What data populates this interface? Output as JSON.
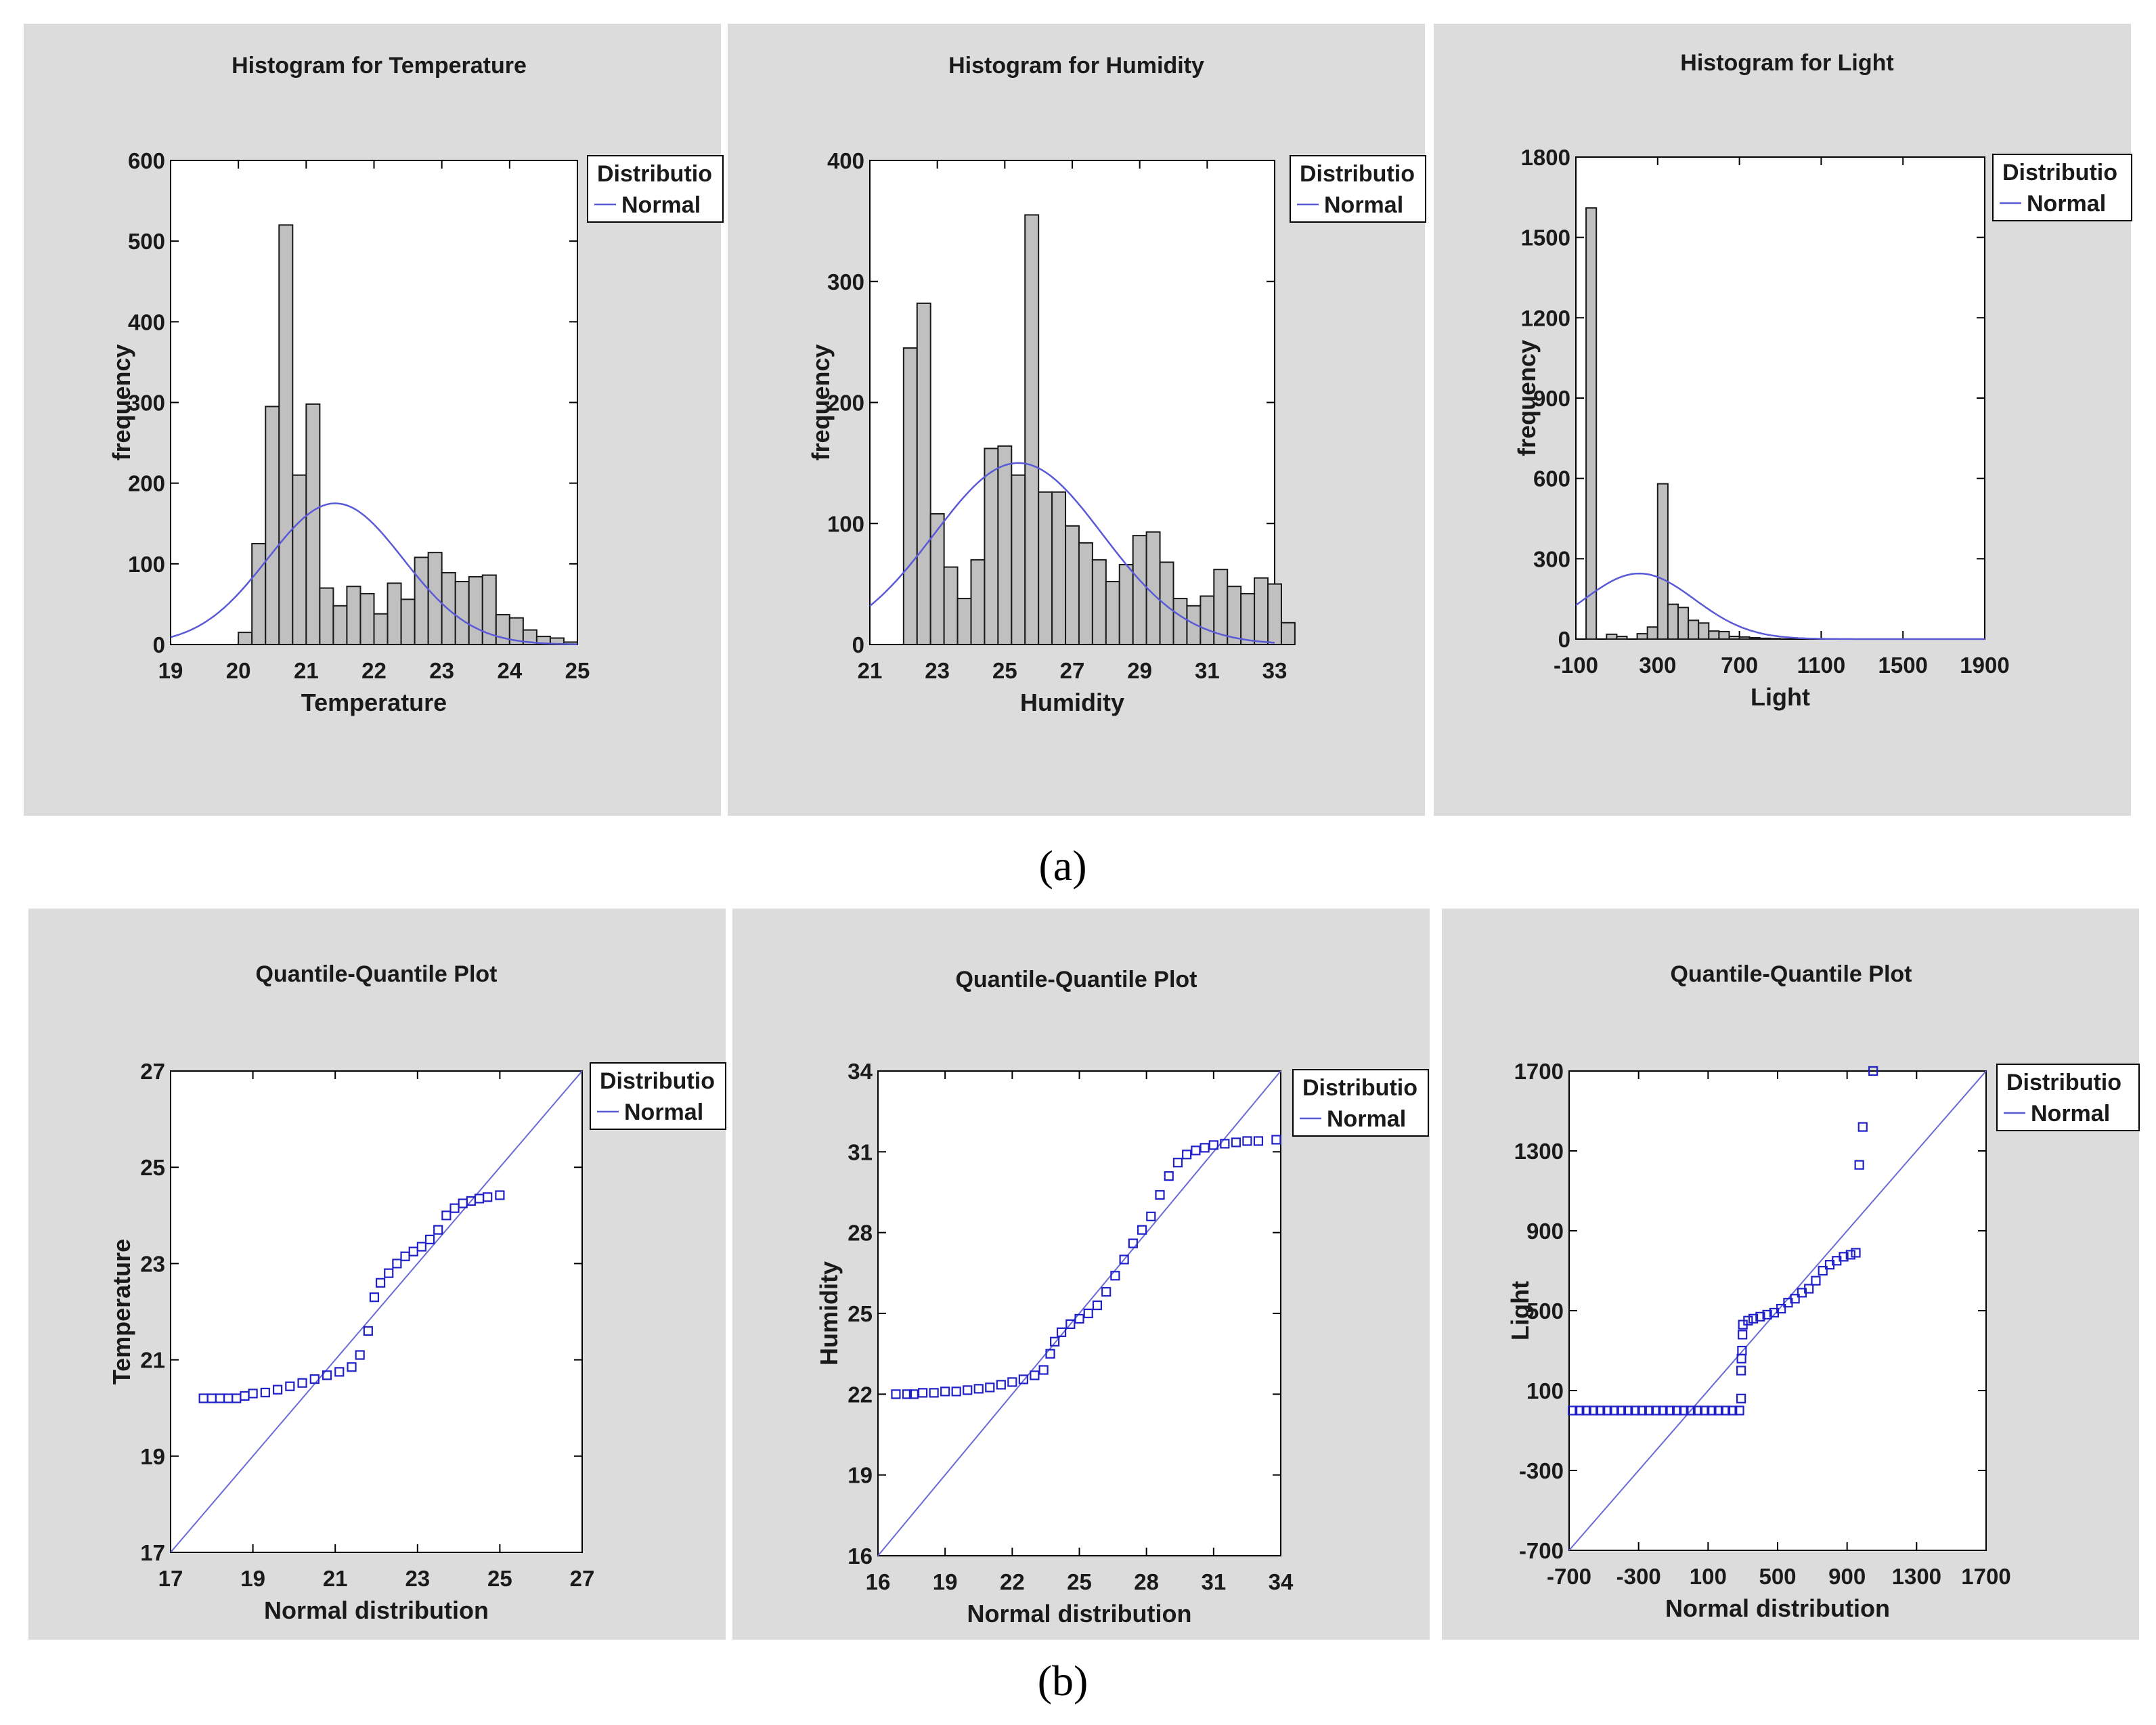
{
  "figure": {
    "label_a": "(a)",
    "label_b": "(b)"
  },
  "legend": {
    "title": "Distributio",
    "entry": "Normal",
    "curve_color": "#5a5ad6",
    "point_color": "#2020c8"
  },
  "chart_data": [
    {
      "id": "hist-temperature",
      "type": "bar",
      "title": "Histogram for Temperature",
      "xlabel": "Temperature",
      "ylabel": "frequency",
      "xlim": [
        19,
        25
      ],
      "ylim": [
        0,
        600
      ],
      "xticks": [
        19,
        20,
        21,
        22,
        23,
        24,
        25
      ],
      "yticks": [
        0,
        100,
        200,
        300,
        400,
        500,
        600
      ],
      "bin_start": 20,
      "bin_width": 0.2,
      "values": [
        15,
        125,
        295,
        520,
        210,
        298,
        70,
        48,
        72,
        63,
        38,
        76,
        56,
        108,
        114,
        89,
        78,
        84,
        86,
        37,
        33,
        18,
        10,
        8,
        3
      ],
      "normal_fit": {
        "mean": 21.43,
        "sd": 1.0,
        "peak": 175
      }
    },
    {
      "id": "hist-humidity",
      "type": "bar",
      "title": "Histogram for Humidity",
      "xlabel": "Humidity",
      "ylabel": "frequency",
      "xlim": [
        21,
        33
      ],
      "ylim": [
        0,
        400
      ],
      "xticks": [
        21,
        23,
        25,
        27,
        29,
        31,
        33
      ],
      "yticks": [
        0,
        100,
        200,
        300,
        400
      ],
      "bin_start": 22,
      "bin_width": 0.4,
      "values": [
        245,
        282,
        108,
        64,
        38,
        70,
        162,
        164,
        140,
        355,
        126,
        126,
        98,
        84,
        70,
        52,
        66,
        90,
        93,
        68,
        38,
        32,
        40,
        62,
        48,
        42,
        55,
        50,
        18
      ],
      "normal_fit": {
        "mean": 25.4,
        "sd": 2.5,
        "peak": 150
      }
    },
    {
      "id": "hist-light",
      "type": "bar",
      "title": "Histogram for Light",
      "xlabel": "Light",
      "ylabel": "frequency",
      "xlim": [
        -100,
        1900
      ],
      "ylim": [
        0,
        1800
      ],
      "xticks": [
        -100,
        300,
        700,
        1100,
        1500,
        1900
      ],
      "ytick_labels": [
        0,
        300,
        600,
        900,
        1200,
        1500,
        1800
      ],
      "bin_start": -50,
      "bin_width": 50,
      "values": [
        1610,
        0,
        18,
        10,
        0,
        20,
        45,
        580,
        130,
        118,
        70,
        60,
        30,
        28,
        10,
        8,
        5,
        3,
        2,
        0,
        0,
        0,
        0,
        0,
        0,
        0,
        0,
        0,
        0,
        0,
        0,
        0,
        0,
        0,
        0,
        0,
        0,
        0,
        0,
        0
      ],
      "normal_fit": {
        "mean": 210,
        "sd": 270,
        "peak": 245
      }
    },
    {
      "id": "qq-temperature",
      "type": "scatter",
      "title": "Quantile-Quantile Plot",
      "xlabel": "Normal distribution",
      "ylabel": "Temperature",
      "xlim": [
        17,
        27
      ],
      "ylim": [
        17,
        27
      ],
      "xticks": [
        17,
        19,
        21,
        23,
        25,
        27
      ],
      "yticks": [
        17,
        19,
        21,
        23,
        25,
        27
      ],
      "reference_line": [
        [
          17,
          17
        ],
        [
          27,
          27
        ]
      ],
      "points": [
        [
          17.8,
          20.2
        ],
        [
          18.0,
          20.2
        ],
        [
          18.2,
          20.2
        ],
        [
          18.4,
          20.2
        ],
        [
          18.6,
          20.2
        ],
        [
          18.8,
          20.25
        ],
        [
          19.0,
          20.3
        ],
        [
          19.3,
          20.32
        ],
        [
          19.6,
          20.38
        ],
        [
          19.9,
          20.45
        ],
        [
          20.2,
          20.52
        ],
        [
          20.5,
          20.6
        ],
        [
          20.8,
          20.68
        ],
        [
          21.1,
          20.75
        ],
        [
          21.4,
          20.85
        ],
        [
          21.6,
          21.1
        ],
        [
          21.8,
          21.6
        ],
        [
          21.95,
          22.3
        ],
        [
          22.1,
          22.6
        ],
        [
          22.3,
          22.8
        ],
        [
          22.5,
          23.0
        ],
        [
          22.7,
          23.15
        ],
        [
          22.9,
          23.25
        ],
        [
          23.1,
          23.35
        ],
        [
          23.3,
          23.5
        ],
        [
          23.5,
          23.7
        ],
        [
          23.7,
          24.0
        ],
        [
          23.9,
          24.15
        ],
        [
          24.1,
          24.25
        ],
        [
          24.3,
          24.3
        ],
        [
          24.5,
          24.35
        ],
        [
          24.7,
          24.38
        ],
        [
          25.0,
          24.42
        ]
      ]
    },
    {
      "id": "qq-humidity",
      "type": "scatter",
      "title": "Quantile-Quantile Plot",
      "xlabel": "Normal distribution",
      "ylabel": "Humidity",
      "xlim": [
        16,
        34
      ],
      "ylim": [
        16,
        34
      ],
      "xticks": [
        16,
        19,
        22,
        25,
        28,
        31,
        34
      ],
      "yticks": [
        16,
        19,
        22,
        25,
        28,
        31,
        34
      ],
      "reference_line": [
        [
          16,
          16
        ],
        [
          34,
          34
        ]
      ],
      "points": [
        [
          16.8,
          22.0
        ],
        [
          17.3,
          22.0
        ],
        [
          17.6,
          22.0
        ],
        [
          18.0,
          22.05
        ],
        [
          18.5,
          22.05
        ],
        [
          19.0,
          22.1
        ],
        [
          19.5,
          22.1
        ],
        [
          20.0,
          22.15
        ],
        [
          20.5,
          22.2
        ],
        [
          21.0,
          22.25
        ],
        [
          21.5,
          22.35
        ],
        [
          22.0,
          22.45
        ],
        [
          22.5,
          22.55
        ],
        [
          23.0,
          22.7
        ],
        [
          23.4,
          22.9
        ],
        [
          23.7,
          23.5
        ],
        [
          23.9,
          23.95
        ],
        [
          24.2,
          24.3
        ],
        [
          24.6,
          24.6
        ],
        [
          25.0,
          24.8
        ],
        [
          25.4,
          25.0
        ],
        [
          25.8,
          25.3
        ],
        [
          26.2,
          25.8
        ],
        [
          26.6,
          26.4
        ],
        [
          27.0,
          27.0
        ],
        [
          27.4,
          27.6
        ],
        [
          27.8,
          28.1
        ],
        [
          28.2,
          28.6
        ],
        [
          28.6,
          29.4
        ],
        [
          29.0,
          30.1
        ],
        [
          29.4,
          30.6
        ],
        [
          29.8,
          30.9
        ],
        [
          30.2,
          31.05
        ],
        [
          30.6,
          31.15
        ],
        [
          31.0,
          31.25
        ],
        [
          31.5,
          31.3
        ],
        [
          32.0,
          31.35
        ],
        [
          32.5,
          31.4
        ],
        [
          33.0,
          31.4
        ],
        [
          33.8,
          31.45
        ]
      ]
    },
    {
      "id": "qq-light",
      "type": "scatter",
      "title": "Quantile-Quantile Plot",
      "xlabel": "Normal distribution",
      "ylabel": "Light",
      "xlim": [
        -700,
        1700
      ],
      "ylim": [
        -700,
        1700
      ],
      "xticks": [
        -700,
        -300,
        100,
        500,
        900,
        1300,
        1700
      ],
      "ytick_labels": [
        "-700",
        "-300",
        "100",
        "500",
        "900",
        "1300",
        "1700"
      ],
      "reference_line": [
        [
          -700,
          -700
        ],
        [
          1700,
          1700
        ]
      ],
      "points": [
        [
          -680,
          0
        ],
        [
          -640,
          0
        ],
        [
          -600,
          0
        ],
        [
          -560,
          0
        ],
        [
          -520,
          0
        ],
        [
          -480,
          0
        ],
        [
          -440,
          0
        ],
        [
          -400,
          0
        ],
        [
          -360,
          0
        ],
        [
          -320,
          0
        ],
        [
          -280,
          0
        ],
        [
          -240,
          0
        ],
        [
          -200,
          0
        ],
        [
          -160,
          0
        ],
        [
          -120,
          0
        ],
        [
          -80,
          0
        ],
        [
          -40,
          0
        ],
        [
          0,
          0
        ],
        [
          40,
          0
        ],
        [
          80,
          0
        ],
        [
          120,
          0
        ],
        [
          160,
          0
        ],
        [
          200,
          0
        ],
        [
          240,
          0
        ],
        [
          280,
          0
        ],
        [
          290,
          60
        ],
        [
          290,
          200
        ],
        [
          292,
          260
        ],
        [
          295,
          300
        ],
        [
          298,
          380
        ],
        [
          300,
          430
        ],
        [
          330,
          450
        ],
        [
          360,
          460
        ],
        [
          400,
          470
        ],
        [
          440,
          480
        ],
        [
          480,
          490
        ],
        [
          520,
          510
        ],
        [
          560,
          540
        ],
        [
          600,
          560
        ],
        [
          640,
          590
        ],
        [
          680,
          610
        ],
        [
          720,
          650
        ],
        [
          760,
          700
        ],
        [
          800,
          730
        ],
        [
          840,
          750
        ],
        [
          880,
          770
        ],
        [
          920,
          780
        ],
        [
          950,
          790
        ],
        [
          970,
          1230
        ],
        [
          990,
          1420
        ],
        [
          1050,
          1700
        ]
      ]
    }
  ]
}
